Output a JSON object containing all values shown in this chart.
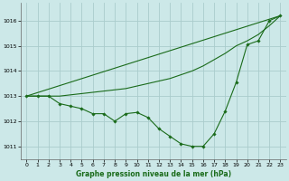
{
  "title": "Graphe pression niveau de la mer (hPa)",
  "bg_color": "#cce8e8",
  "grid_color": "#aacccc",
  "line_color": "#1a6b1a",
  "xlim": [
    -0.5,
    23.5
  ],
  "ylim": [
    1010.5,
    1016.7
  ],
  "yticks": [
    1011,
    1012,
    1013,
    1014,
    1015,
    1016
  ],
  "xticks": [
    0,
    1,
    2,
    3,
    4,
    5,
    6,
    7,
    8,
    9,
    10,
    11,
    12,
    13,
    14,
    15,
    16,
    17,
    18,
    19,
    20,
    21,
    22,
    23
  ],
  "series": [
    {
      "x": [
        0,
        1,
        2,
        3,
        4,
        5,
        6,
        7,
        8,
        9,
        10,
        11,
        12,
        13,
        14,
        15,
        16,
        17,
        18,
        19,
        20,
        21,
        22,
        23
      ],
      "y": [
        1013.0,
        1013.0,
        1013.0,
        1013.0,
        1013.05,
        1013.1,
        1013.15,
        1013.2,
        1013.25,
        1013.3,
        1013.4,
        1013.5,
        1013.6,
        1013.7,
        1013.85,
        1014.0,
        1014.2,
        1014.45,
        1014.7,
        1015.0,
        1015.2,
        1015.45,
        1015.8,
        1016.2
      ]
    },
    {
      "x": [
        0,
        23
      ],
      "y": [
        1013.0,
        1016.2
      ]
    },
    {
      "x": [
        0,
        1,
        2,
        3,
        4,
        5,
        6,
        7,
        8,
        9,
        10,
        11,
        12,
        13,
        14,
        15,
        16,
        17,
        18,
        19,
        20,
        21,
        22,
        23
      ],
      "y": [
        1013.0,
        1013.0,
        1013.0,
        1012.7,
        1012.6,
        1012.5,
        1012.3,
        1012.3,
        1012.0,
        1012.3,
        1012.35,
        1012.15,
        1011.7,
        1011.4,
        1011.1,
        1011.0,
        1011.0,
        1011.5,
        1012.4,
        1013.55,
        1015.05,
        1015.2,
        1016.0,
        1016.2
      ]
    }
  ]
}
